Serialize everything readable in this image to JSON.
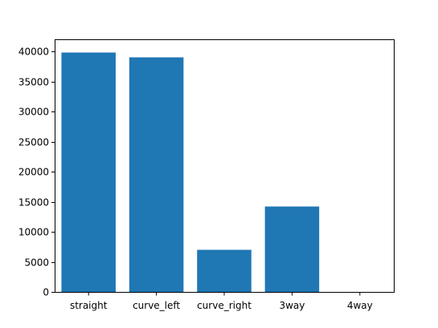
{
  "chart_data": {
    "type": "bar",
    "title": "",
    "xlabel": "",
    "ylabel": "",
    "categories": [
      "straight",
      "curve_left",
      "curve_right",
      "3way",
      "4way"
    ],
    "values": [
      39800,
      39000,
      7000,
      14200,
      0
    ],
    "ylim": [
      0,
      42000
    ],
    "yticks": [
      0,
      5000,
      10000,
      15000,
      20000,
      25000,
      30000,
      35000,
      40000
    ],
    "ytick_labels": [
      "0",
      "5000",
      "10000",
      "15000",
      "20000",
      "25000",
      "30000",
      "35000",
      "40000"
    ],
    "grid": false,
    "legend": "none",
    "bar_color": "#1f77b4"
  }
}
